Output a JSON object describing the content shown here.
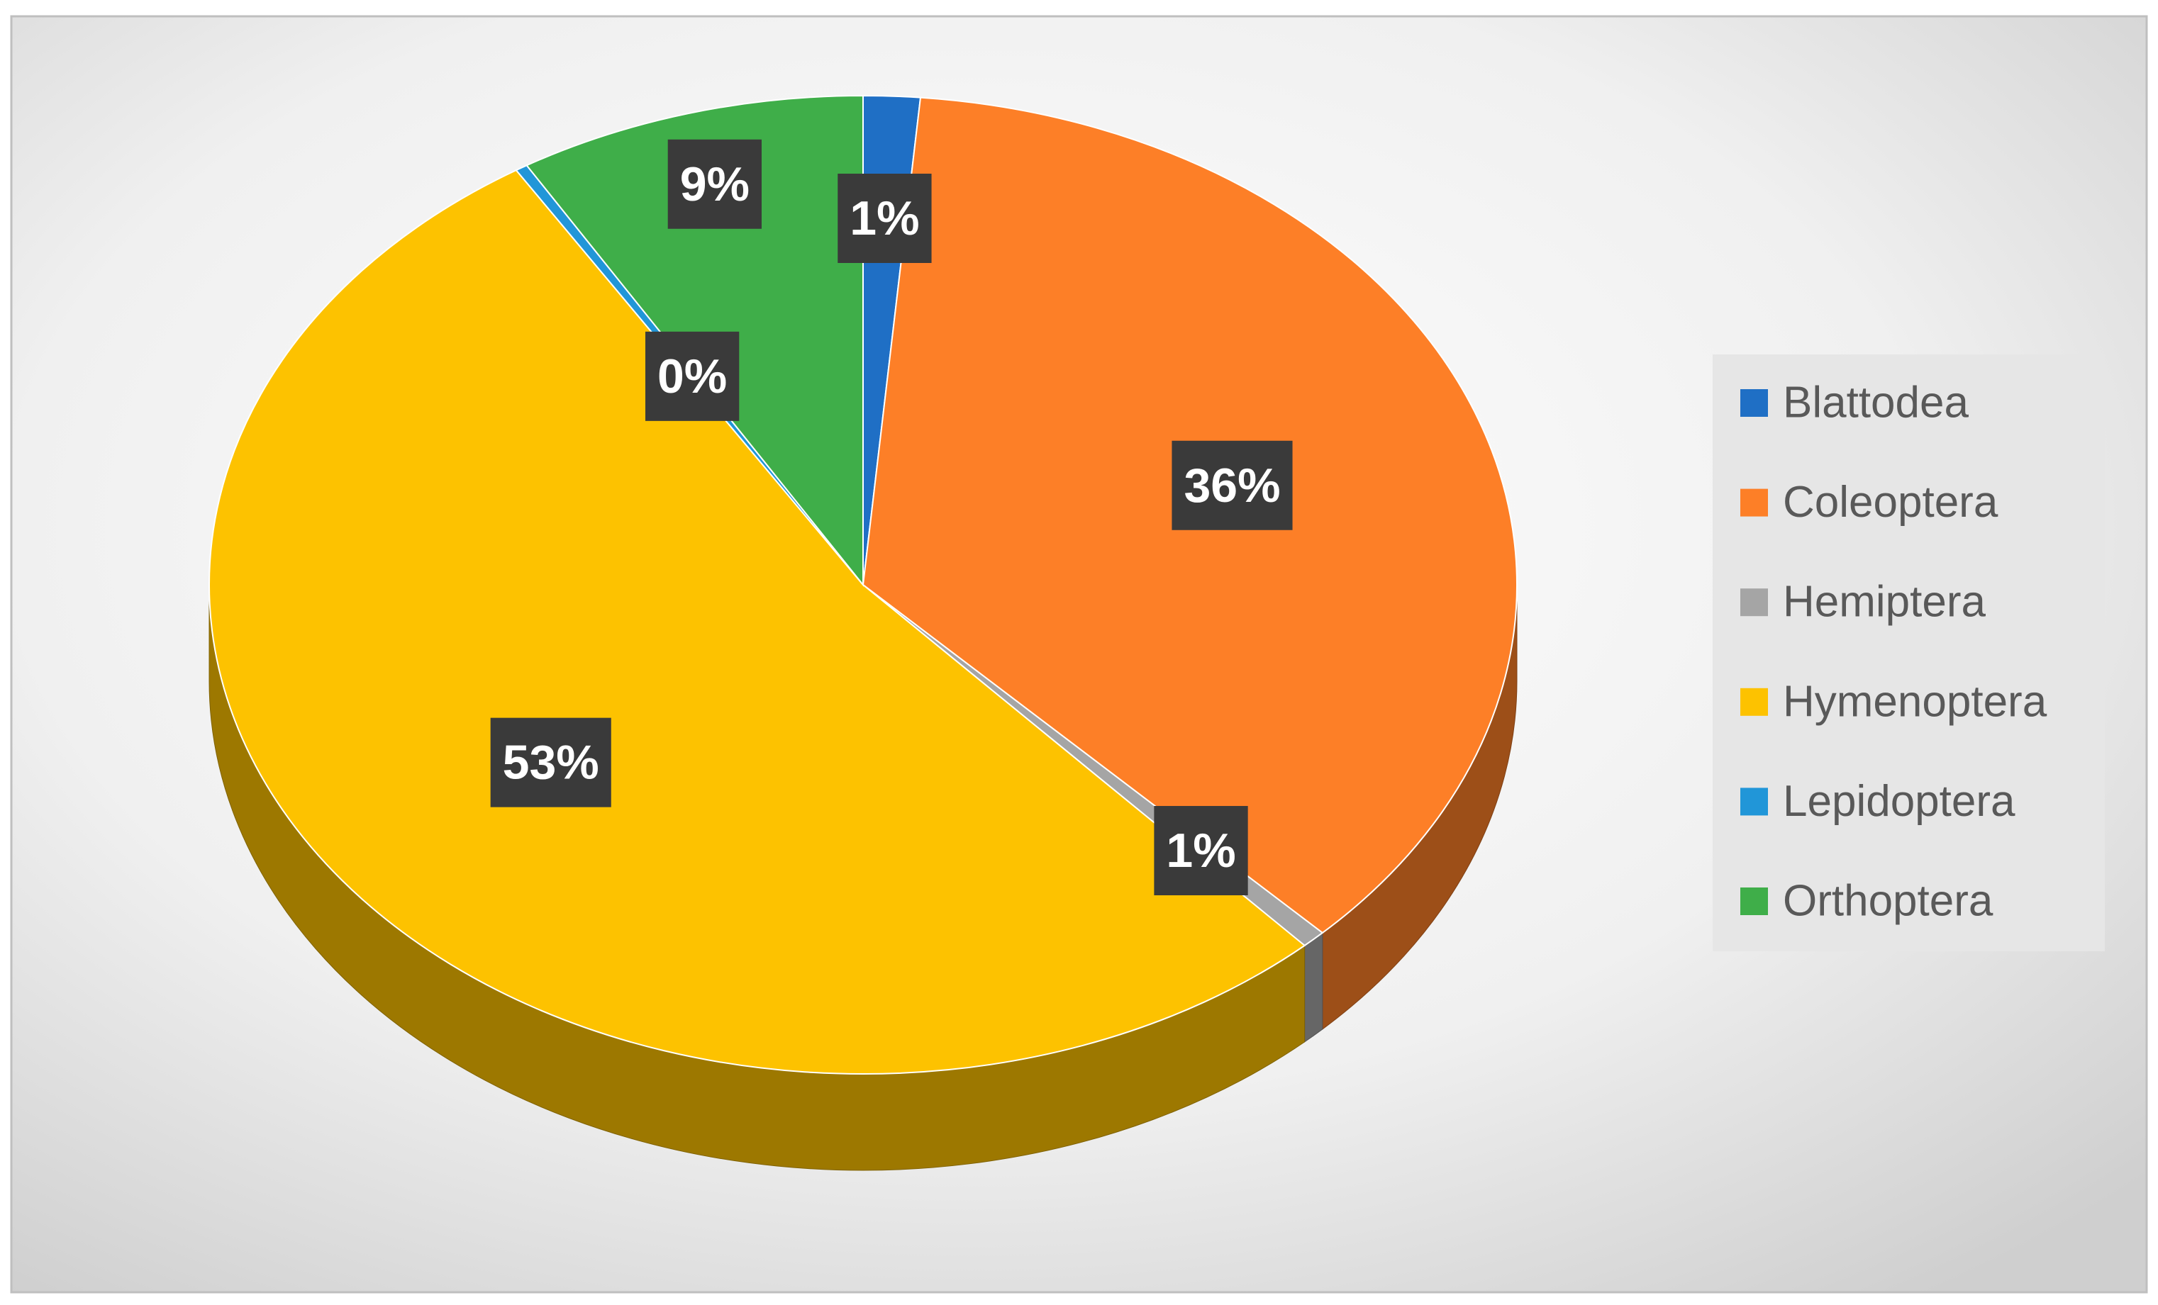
{
  "chart_data": {
    "type": "pie",
    "style": "3d",
    "categories": [
      "Blattodea",
      "Coleoptera",
      "Hemiptera",
      "Hymenoptera",
      "Lepidoptera",
      "Orthoptera"
    ],
    "values": [
      1.4,
      36.2,
      0.6,
      52.9,
      0.3,
      8.6
    ],
    "value_labels": [
      "1%",
      "36%",
      "1%",
      "53%",
      "0%",
      "9%"
    ],
    "colors": [
      "#1f6fc5",
      "#fd7f27",
      "#a5a5a5",
      "#fdc200",
      "#2196d8",
      "#3fae49"
    ],
    "legend": "right"
  }
}
